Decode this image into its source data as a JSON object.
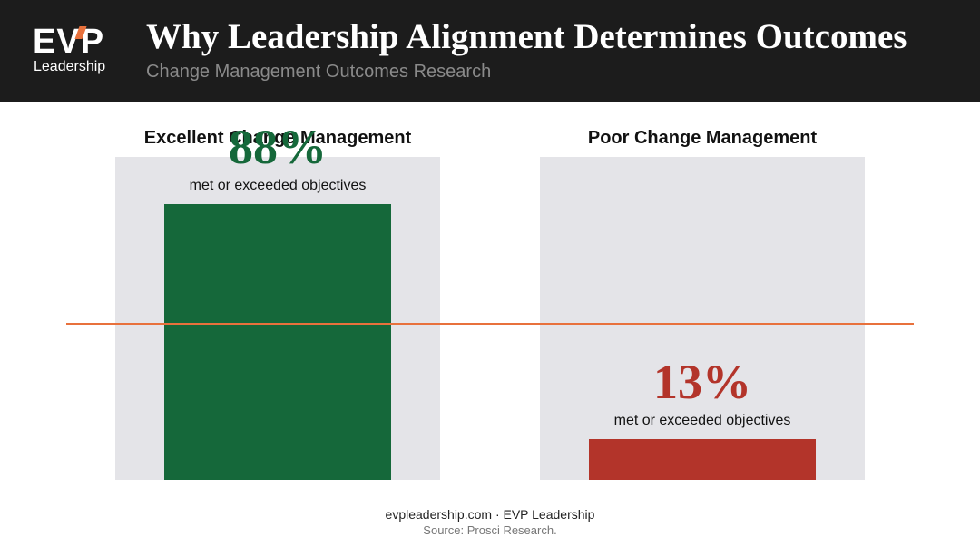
{
  "header": {
    "logo_main": "EVP",
    "logo_sub": "Leadership",
    "title": "Why Leadership Alignment Determines Outcomes",
    "subtitle": "Change Management Outcomes Research"
  },
  "chart_data": {
    "type": "bar",
    "title": "Why Leadership Alignment Determines Outcomes",
    "subtitle": "Change Management Outcomes Research",
    "categories": [
      "Excellent Change Management",
      "Poor Change Management"
    ],
    "values": [
      88,
      13
    ],
    "value_labels": [
      "88%",
      "13%"
    ],
    "value_caption": "met or exceeded objectives",
    "ylim": [
      0,
      100
    ],
    "reference_line": 50,
    "colors": [
      "#15683a",
      "#b3342a"
    ],
    "reference_color": "#e8713c",
    "grid": false
  },
  "footer": {
    "line1": "evpleadership.com · EVP Leadership",
    "line2": "Source: Prosci Research."
  }
}
